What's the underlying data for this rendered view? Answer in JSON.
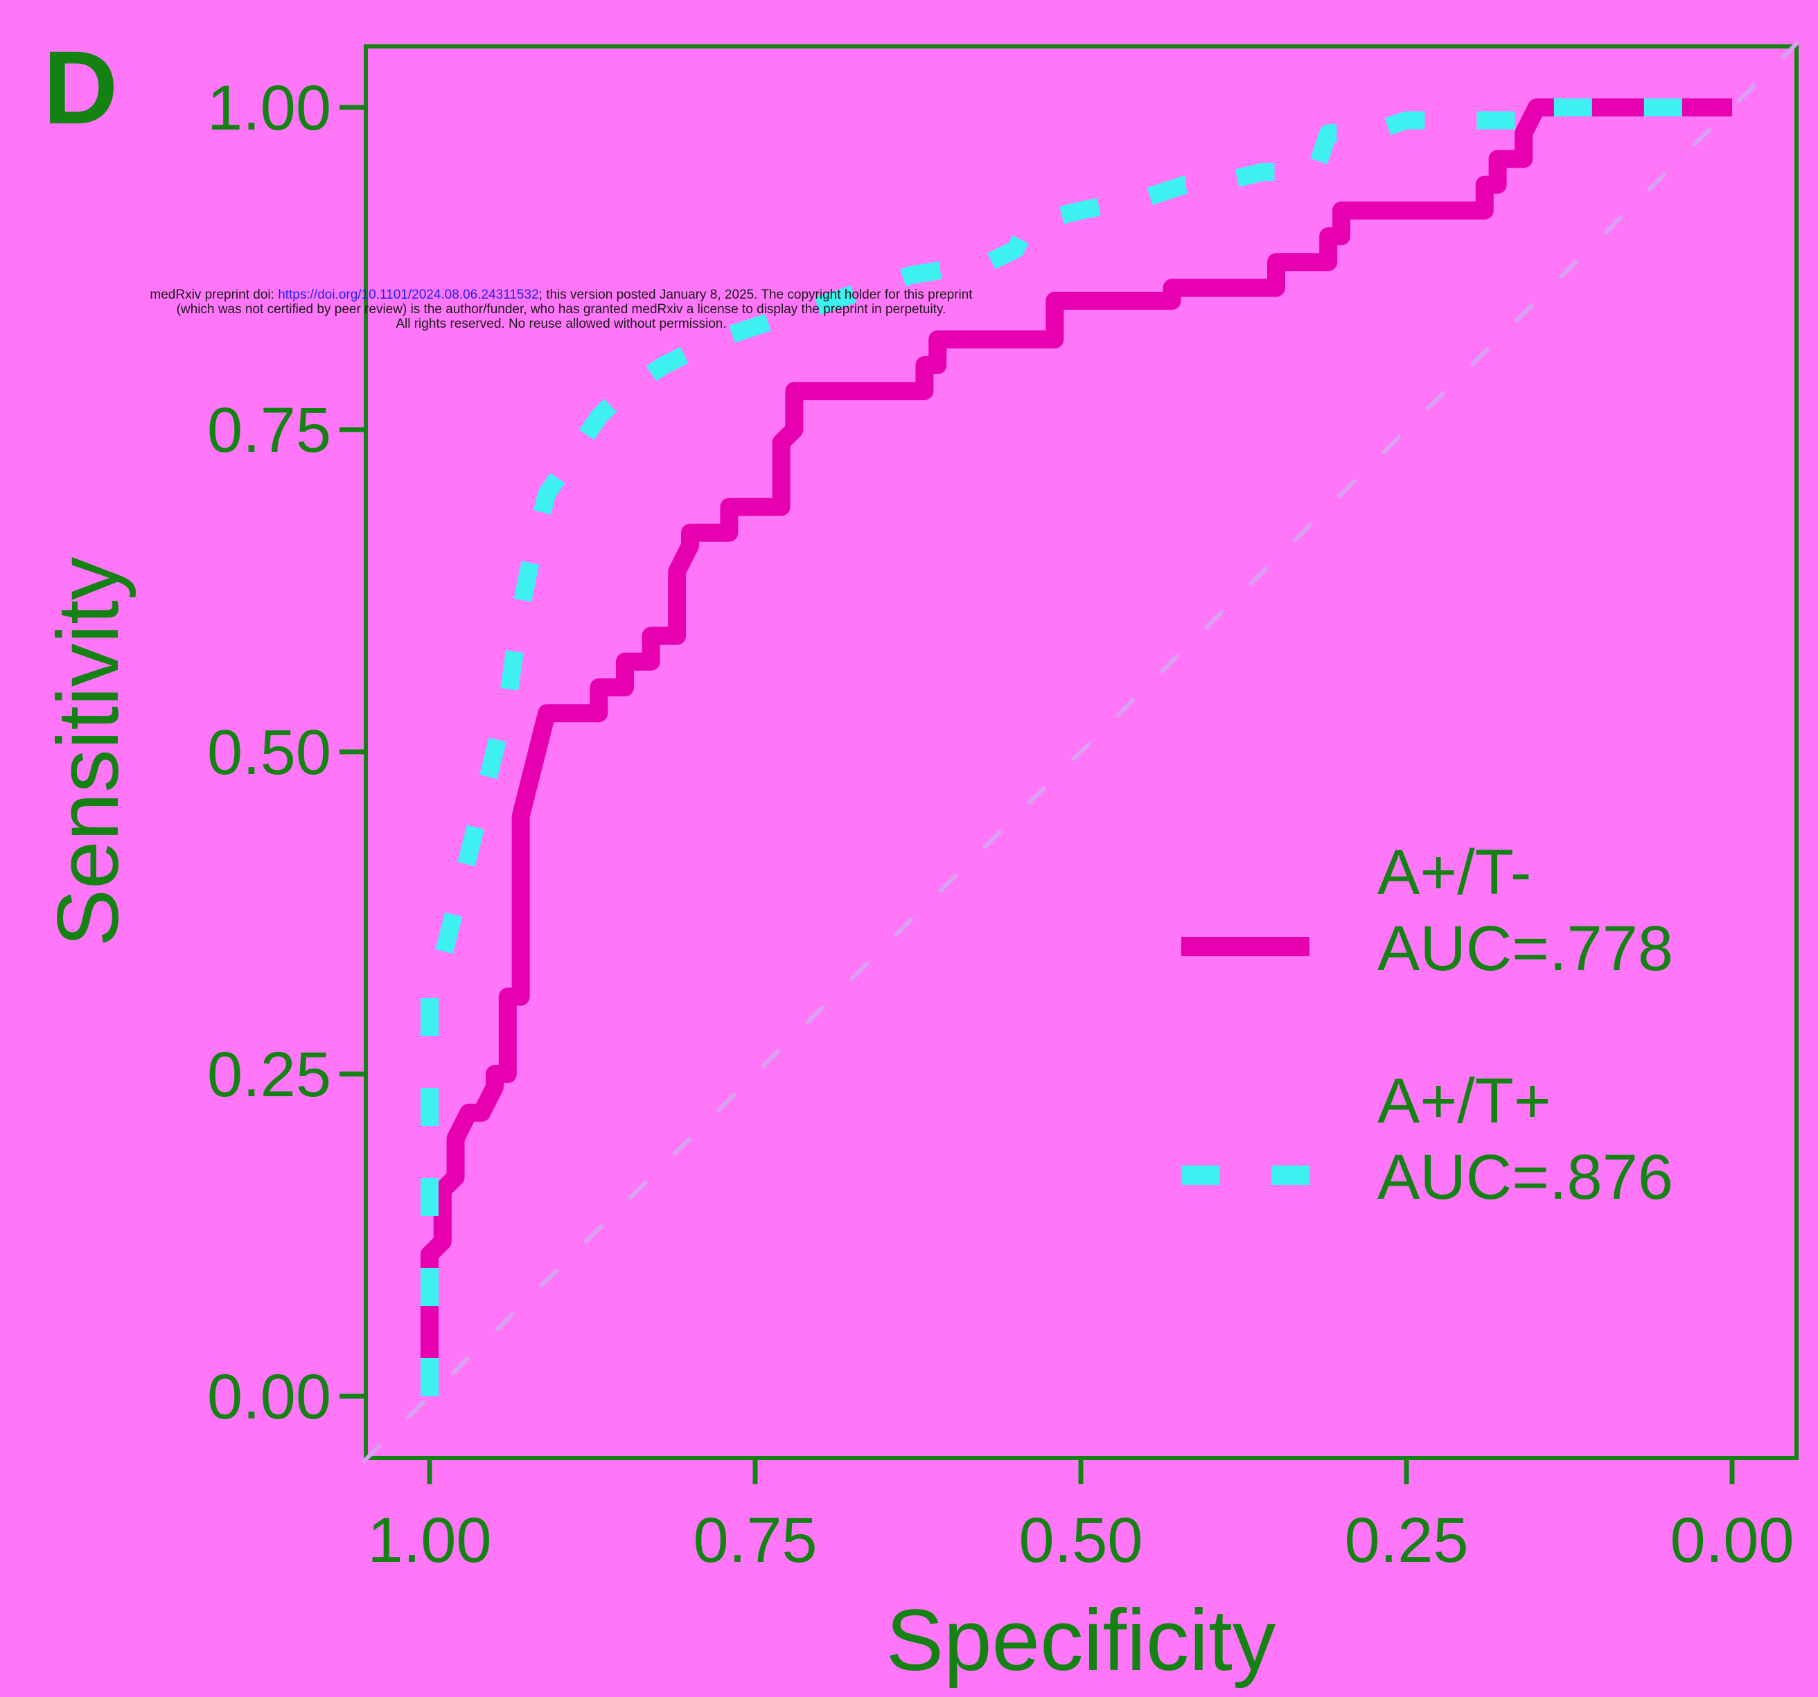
{
  "panel_label": "D",
  "preprint_notice": {
    "line1_prefix": "medRxiv preprint doi: ",
    "line1_link": "https://doi.org/10.1101/2024.08.06.24311532",
    "line1_suffix": "; this version posted January 8, 2025. The copyright holder for this preprint",
    "line2": "(which was not certified by peer review) is the author/funder, who has granted medRxiv a license to display the preprint in perpetuity.",
    "line3": "All rights reserved. No reuse allowed without permission."
  },
  "colors": {
    "background": "#ff77f8",
    "axis": "#138213",
    "series_t_minus": "#e600b0",
    "series_t_plus": "#3ef0f0",
    "reference_line": "#d7a3f0"
  },
  "chart_data": {
    "type": "line",
    "xlabel": "Specificity",
    "ylabel": "Sensitivity",
    "xlim": [
      1.0,
      0.0
    ],
    "ylim": [
      0.0,
      1.0
    ],
    "x_reversed": true,
    "xticks": [
      "1.00",
      "0.75",
      "0.50",
      "0.25",
      "0.00"
    ],
    "xtick_values": [
      1.0,
      0.75,
      0.5,
      0.25,
      0.0
    ],
    "yticks": [
      "0.00",
      "0.25",
      "0.50",
      "0.75",
      "1.00"
    ],
    "ytick_values": [
      0.0,
      0.25,
      0.5,
      0.75,
      1.0
    ],
    "grid": false,
    "legend_position": "bottom-right",
    "reference_diagonal": true,
    "series": [
      {
        "name": "A+/T-",
        "label_line1": "A+/T-",
        "label_line2": "AUC=.778",
        "line_style": "solid",
        "specificity": [
          1.0,
          1.0,
          0.99,
          0.99,
          0.98,
          0.98,
          0.97,
          0.96,
          0.95,
          0.95,
          0.94,
          0.94,
          0.93,
          0.93,
          0.91,
          0.87,
          0.87,
          0.85,
          0.85,
          0.83,
          0.83,
          0.81,
          0.81,
          0.8,
          0.8,
          0.77,
          0.77,
          0.73,
          0.73,
          0.72,
          0.72,
          0.62,
          0.62,
          0.61,
          0.61,
          0.52,
          0.52,
          0.43,
          0.43,
          0.35,
          0.35,
          0.31,
          0.31,
          0.3,
          0.3,
          0.19,
          0.19,
          0.18,
          0.18,
          0.16,
          0.16,
          0.15,
          0.0
        ],
        "sensitivity": [
          0.0,
          0.11,
          0.12,
          0.16,
          0.17,
          0.2,
          0.22,
          0.22,
          0.24,
          0.25,
          0.25,
          0.31,
          0.31,
          0.45,
          0.53,
          0.53,
          0.55,
          0.55,
          0.57,
          0.57,
          0.59,
          0.59,
          0.64,
          0.66,
          0.67,
          0.67,
          0.69,
          0.69,
          0.74,
          0.75,
          0.78,
          0.78,
          0.8,
          0.8,
          0.82,
          0.82,
          0.85,
          0.85,
          0.86,
          0.86,
          0.88,
          0.88,
          0.9,
          0.9,
          0.92,
          0.92,
          0.94,
          0.94,
          0.96,
          0.96,
          0.98,
          1.0,
          1.0
        ]
      },
      {
        "name": "A+/T+",
        "label_line1": "A+/T+",
        "label_line2": "AUC=.876",
        "line_style": "dashed",
        "specificity": [
          1.0,
          1.0,
          0.99,
          0.98,
          0.97,
          0.96,
          0.95,
          0.94,
          0.93,
          0.92,
          0.91,
          0.89,
          0.87,
          0.85,
          0.82,
          0.78,
          0.72,
          0.63,
          0.57,
          0.55,
          0.54,
          0.5,
          0.45,
          0.42,
          0.4,
          0.36,
          0.32,
          0.31,
          0.28,
          0.25,
          0.23,
          0.18,
          0.16,
          0.16,
          0.0
        ],
        "sensitivity": [
          0.0,
          0.33,
          0.34,
          0.38,
          0.42,
          0.46,
          0.5,
          0.54,
          0.61,
          0.66,
          0.7,
          0.73,
          0.76,
          0.78,
          0.8,
          0.82,
          0.84,
          0.87,
          0.88,
          0.89,
          0.91,
          0.92,
          0.93,
          0.94,
          0.94,
          0.95,
          0.95,
          0.98,
          0.98,
          0.99,
          0.99,
          0.99,
          0.99,
          1.0,
          1.0
        ]
      }
    ]
  }
}
